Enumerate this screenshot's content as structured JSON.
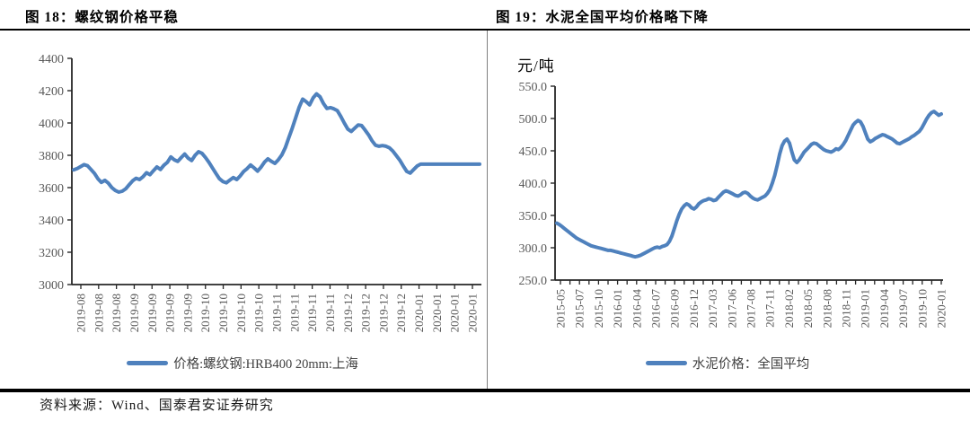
{
  "page": {
    "source_note": "资料来源：Wind、国泰君安证券研究",
    "accent_color": "#4F81BD",
    "label_color": "#595959"
  },
  "chart_data": [
    {
      "type": "line",
      "title": "图 18：螺纹钢价格平稳",
      "legend_position": "bottom",
      "grid": false,
      "ylim": [
        3000,
        4400
      ],
      "y_ticks": [
        3000,
        3200,
        3400,
        3600,
        3800,
        4000,
        4200,
        4400
      ],
      "y_tick_labels": [
        "3000",
        "3200",
        "3400",
        "3600",
        "3800",
        "4000",
        "4200",
        "4400"
      ],
      "x_tick_labels": [
        "2019-08",
        "2019-08",
        "2019-08",
        "2019-09",
        "2019-09",
        "2019-09",
        "2019-09",
        "2019-10",
        "2019-10",
        "2019-10",
        "2019-10",
        "2019-11",
        "2019-11",
        "2019-11",
        "2019-11",
        "2019-12",
        "2019-12",
        "2019-12",
        "2019-12",
        "2020-01",
        "2020-01",
        "2020-01",
        "2020-01"
      ],
      "line_color": "#4F81BD",
      "series": [
        {
          "name": "价格:螺纹钢:HRB400 20mm:上海",
          "values": [
            3710,
            3718,
            3730,
            3742,
            3735,
            3712,
            3688,
            3655,
            3632,
            3645,
            3628,
            3600,
            3582,
            3572,
            3578,
            3592,
            3618,
            3642,
            3658,
            3650,
            3668,
            3692,
            3680,
            3705,
            3728,
            3712,
            3738,
            3756,
            3790,
            3772,
            3762,
            3786,
            3808,
            3782,
            3768,
            3800,
            3822,
            3812,
            3786,
            3756,
            3722,
            3688,
            3655,
            3638,
            3630,
            3646,
            3662,
            3650,
            3672,
            3700,
            3718,
            3740,
            3722,
            3702,
            3726,
            3758,
            3778,
            3762,
            3750,
            3772,
            3802,
            3848,
            3908,
            3968,
            4032,
            4098,
            4148,
            4132,
            4112,
            4155,
            4180,
            4162,
            4120,
            4090,
            4095,
            4088,
            4076,
            4040,
            4000,
            3962,
            3948,
            3968,
            3988,
            3984,
            3956,
            3926,
            3890,
            3862,
            3856,
            3860,
            3856,
            3846,
            3826,
            3798,
            3770,
            3734,
            3700,
            3690,
            3712,
            3734,
            3745,
            3745,
            3745,
            3745,
            3745,
            3745,
            3745,
            3745,
            3745,
            3745,
            3745,
            3745,
            3745,
            3745,
            3745,
            3745,
            3745,
            3745
          ]
        }
      ]
    },
    {
      "type": "line",
      "title": "图 19：水泥全国平均价格略下降",
      "ylabel": "元/吨",
      "legend_position": "bottom",
      "grid": false,
      "ylim": [
        250,
        550
      ],
      "y_ticks": [
        250,
        300,
        350,
        400,
        450,
        500,
        550
      ],
      "y_tick_labels": [
        "250.0",
        "300.0",
        "350.0",
        "400.0",
        "450.0",
        "500.0",
        "550.0"
      ],
      "x_tick_labels": [
        "2015-05",
        "2015-07",
        "2015-10",
        "2016-01",
        "2016-04",
        "2016-07",
        "2016-09",
        "2016-12",
        "2017-03",
        "2017-06",
        "2017-08",
        "2017-11",
        "2018-02",
        "2018-05",
        "2018-08",
        "2018-11",
        "2019-01",
        "2019-04",
        "2019-07",
        "2019-10",
        "2020-01"
      ],
      "line_color": "#4F81BD",
      "series": [
        {
          "name": "水泥价格：全国平均",
          "values": [
            338,
            336,
            333,
            330,
            327,
            324,
            321,
            318,
            315,
            313,
            311,
            309,
            307,
            305,
            303,
            302,
            301,
            300,
            299,
            298,
            297,
            296,
            296,
            295,
            294,
            293,
            292,
            291,
            290,
            289,
            288,
            287,
            286,
            287,
            288,
            290,
            292,
            294,
            296,
            298,
            300,
            301,
            300,
            302,
            303,
            305,
            310,
            318,
            330,
            342,
            352,
            360,
            365,
            368,
            366,
            362,
            360,
            363,
            368,
            371,
            373,
            374,
            376,
            375,
            373,
            374,
            378,
            382,
            386,
            388,
            387,
            385,
            383,
            381,
            380,
            382,
            385,
            386,
            384,
            380,
            377,
            375,
            374,
            376,
            378,
            380,
            384,
            390,
            400,
            412,
            428,
            445,
            458,
            465,
            468,
            462,
            448,
            436,
            432,
            436,
            442,
            448,
            452,
            456,
            460,
            462,
            461,
            458,
            455,
            452,
            450,
            449,
            448,
            450,
            453,
            452,
            455,
            460,
            466,
            474,
            482,
            490,
            494,
            497,
            495,
            488,
            478,
            468,
            464,
            466,
            469,
            471,
            473,
            475,
            474,
            472,
            470,
            468,
            465,
            462,
            461,
            463,
            465,
            467,
            469,
            472,
            474,
            477,
            480,
            485,
            492,
            499,
            505,
            509,
            511,
            508,
            505,
            507
          ]
        }
      ]
    }
  ]
}
